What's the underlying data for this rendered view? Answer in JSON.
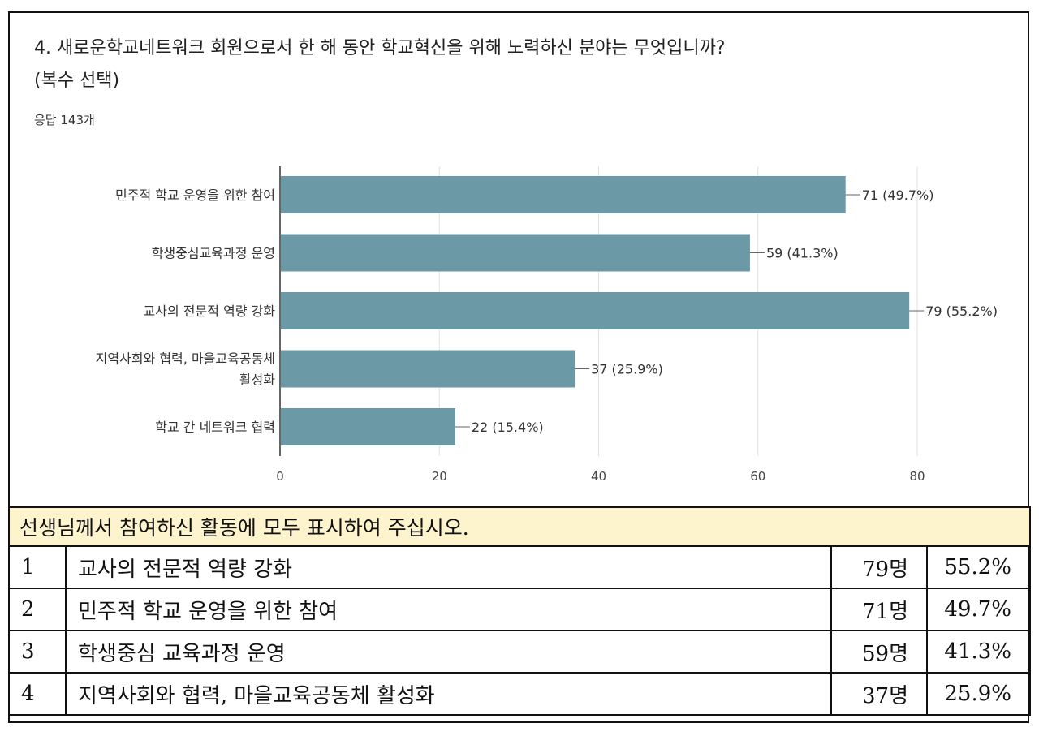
{
  "question": {
    "title_line1": "4. 새로운학교네트워크 회원으로서 한 해 동안 학교혁신을 위해 노력하신 분야는 무엇입니까?",
    "title_line2": "(복수 선택)",
    "responses": "응답 143개"
  },
  "colors": {
    "bar": "#6b9aa6",
    "grid": "#e0e0e0",
    "axis": "#333333",
    "table_header_bg": "#fdf3cc"
  },
  "chart_data": {
    "type": "bar",
    "orientation": "horizontal",
    "categories": [
      [
        "민주적 학교 운영을 위한 참여"
      ],
      [
        "학생중심교육과정 운영"
      ],
      [
        "교사의 전문적 역량 강화"
      ],
      [
        "지역사회와 협력, 마을교육공동체",
        "활성화"
      ],
      [
        "학교 간 네트워크 협력"
      ]
    ],
    "values": [
      71,
      59,
      79,
      37,
      22
    ],
    "value_labels": [
      "71 (49.7%)",
      "59 (41.3%)",
      "79 (55.2%)",
      "37 (25.9%)",
      "22 (15.4%)"
    ],
    "xlim": [
      0,
      80
    ],
    "xticks": [
      0,
      20,
      40,
      60,
      80
    ],
    "grid": true,
    "legend": "none"
  },
  "table": {
    "header": "선생님께서 참여하신 활동에 모두 표시하여 주십시오.",
    "rows": [
      {
        "no": "1",
        "label": "교사의 전문적 역량 강화",
        "count": "79명",
        "pct": "55.2%"
      },
      {
        "no": "2",
        "label": "민주적 학교 운영을 위한 참여",
        "count": "71명",
        "pct": "49.7%"
      },
      {
        "no": "3",
        "label": "학생중심 교육과정 운영",
        "count": "59명",
        "pct": "41.3%"
      },
      {
        "no": "4",
        "label": "지역사회와 협력, 마을교육공동체 활성화",
        "count": "37명",
        "pct": "25.9%"
      }
    ]
  }
}
